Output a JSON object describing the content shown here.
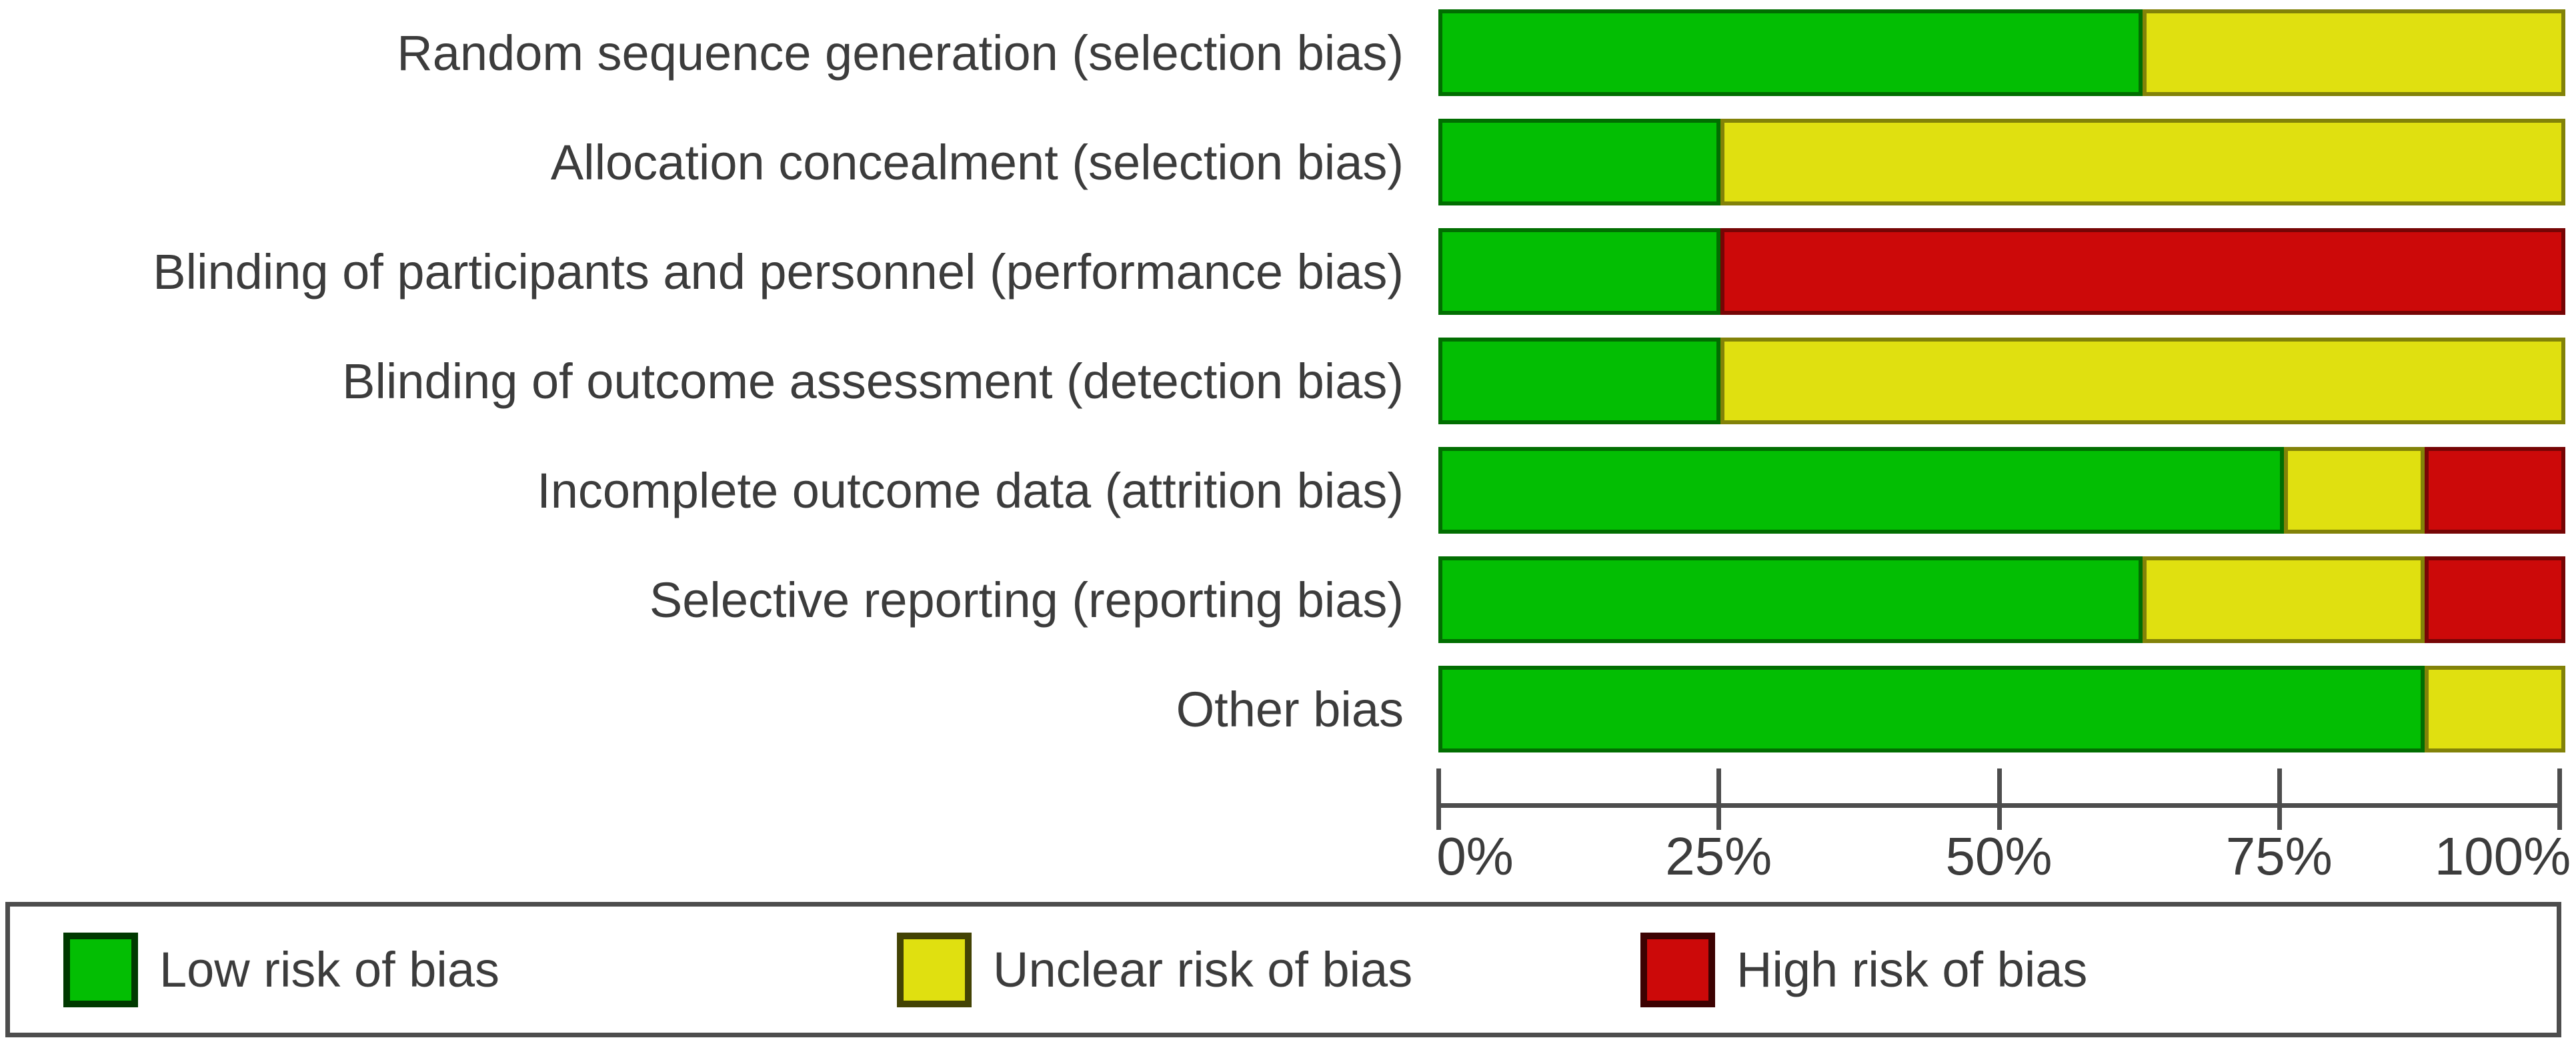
{
  "chart_data": {
    "type": "bar",
    "variant": "horizontal-stacked",
    "categories": [
      "Random sequence generation (selection bias)",
      "Allocation concealment (selection bias)",
      "Blinding of participants and personnel (performance bias)",
      "Blinding of outcome assessment (detection bias)",
      "Incomplete outcome data (attrition bias)",
      "Selective reporting (reporting bias)",
      "Other bias"
    ],
    "series": [
      {
        "key": "low",
        "name": "Low risk of bias",
        "color": "#03be03",
        "values": [
          62.5,
          25,
          25,
          25,
          75,
          62.5,
          87.5
        ]
      },
      {
        "key": "unclear",
        "name": "Unclear risk of bias",
        "color": "#e0e010",
        "values": [
          37.5,
          75,
          0,
          75,
          12.5,
          25,
          12.5
        ]
      },
      {
        "key": "high",
        "name": "High risk of bias",
        "color": "#cc0909",
        "values": [
          0,
          0,
          75,
          0,
          12.5,
          12.5,
          0
        ]
      }
    ],
    "x_ticks": [
      "0%",
      "25%",
      "50%",
      "75%",
      "100%"
    ],
    "xlim": [
      0,
      100
    ],
    "grid": false,
    "legend_position": "bottom"
  },
  "colors": {
    "axis": "#4d4d4d",
    "legend_border": "#4d4d4d",
    "text": "#3c3c3c",
    "background": "#ffffff"
  }
}
